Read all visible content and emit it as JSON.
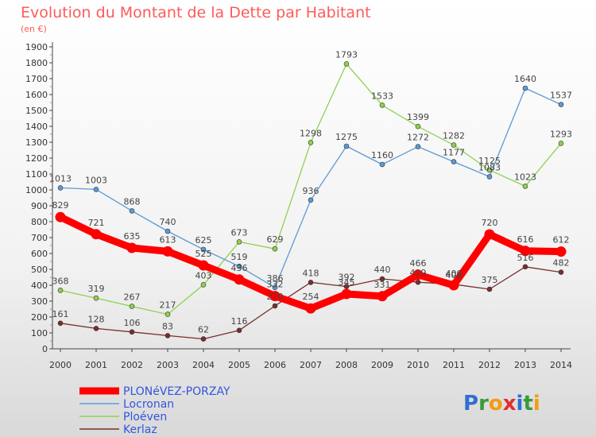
{
  "chart_data": {
    "type": "line",
    "title": "Evolution du Montant de la Dette par Habitant",
    "subtitle": "(en €)",
    "x": [
      "2000",
      "2001",
      "2002",
      "2003",
      "2004",
      "2005",
      "2006",
      "2007",
      "2008",
      "2009",
      "2010",
      "2011",
      "2012",
      "2013",
      "2014"
    ],
    "y_ticks": [
      0,
      100,
      200,
      300,
      400,
      500,
      600,
      700,
      800,
      900,
      1000,
      1100,
      1200,
      1300,
      1400,
      1500,
      1600,
      1700,
      1800,
      1900
    ],
    "ylim": [
      0,
      1900
    ],
    "grid": false,
    "legend_position": "bottom-left",
    "series": [
      {
        "name": "PLONéVEZ-PORZAY",
        "color": "#ff0000",
        "values": [
          829,
          721,
          635,
          613,
          525,
          436,
          332,
          254,
          345,
          331,
          466,
          400,
          720,
          616,
          612
        ],
        "labels": [
          "829",
          "721",
          "635",
          "613",
          "525",
          "436",
          "332",
          "254",
          "345",
          "331",
          "466",
          "400",
          "720",
          "616",
          "612"
        ]
      },
      {
        "name": "Locronan",
        "color": "#5b9bd5",
        "values": [
          1013,
          1003,
          868,
          740,
          625,
          519,
          386,
          936,
          1275,
          1160,
          1272,
          1177,
          1083,
          1640,
          1537
        ],
        "labels": [
          "1013",
          "1003",
          "868",
          "740",
          "625",
          "519",
          "386",
          "936",
          "1275",
          "1160",
          "1272",
          "1177",
          "1083",
          "1640",
          "1537"
        ]
      },
      {
        "name": "Ploéven",
        "color": "#8fd14f",
        "values": [
          368,
          319,
          267,
          217,
          403,
          673,
          629,
          1298,
          1793,
          1533,
          1399,
          1282,
          1125,
          1023,
          1293
        ],
        "labels": [
          "368",
          "319",
          "267",
          "217",
          "403",
          "673",
          "629",
          "1298",
          "1793",
          "1533",
          "1399",
          "1282",
          "1125",
          "1023",
          "1293"
        ]
      },
      {
        "name": "Kerlaz",
        "color": "#7b2d2d",
        "values": [
          161,
          128,
          106,
          83,
          62,
          116,
          270,
          418,
          392,
          440,
          419,
          406,
          375,
          516,
          482
        ],
        "labels": [
          "161",
          "128",
          "106",
          "83",
          "62",
          "116",
          "270",
          "418",
          "392",
          "440",
          "419",
          "406",
          "375",
          "516",
          "482"
        ]
      }
    ]
  },
  "branding": {
    "logo_text": "Proxiti"
  }
}
